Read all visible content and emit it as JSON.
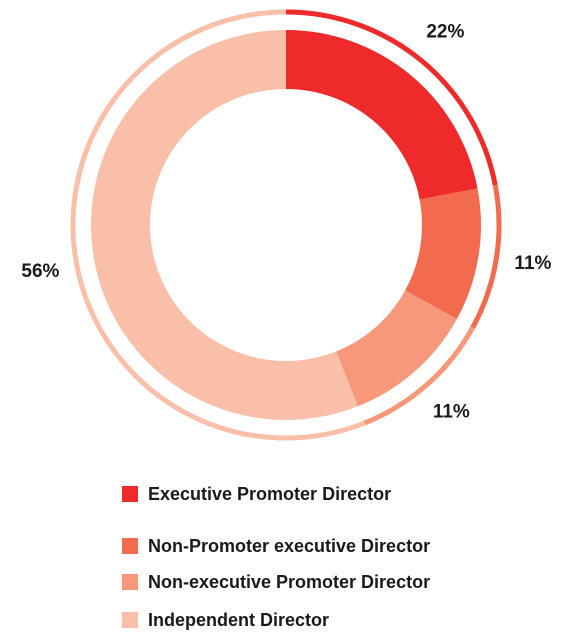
{
  "chart_data": {
    "type": "donut",
    "categories": [
      "Executive Promoter Director",
      "Non-Promoter executive Director",
      "Non-executive Promoter Director",
      "Independent Director"
    ],
    "values": [
      22,
      11,
      11,
      56
    ],
    "value_labels": [
      "22%",
      "11%",
      "11%",
      "56%"
    ],
    "colors": [
      "#ee2a2b",
      "#f26b4f",
      "#f7987a",
      "#fabfa8"
    ],
    "legend": "bottom"
  }
}
